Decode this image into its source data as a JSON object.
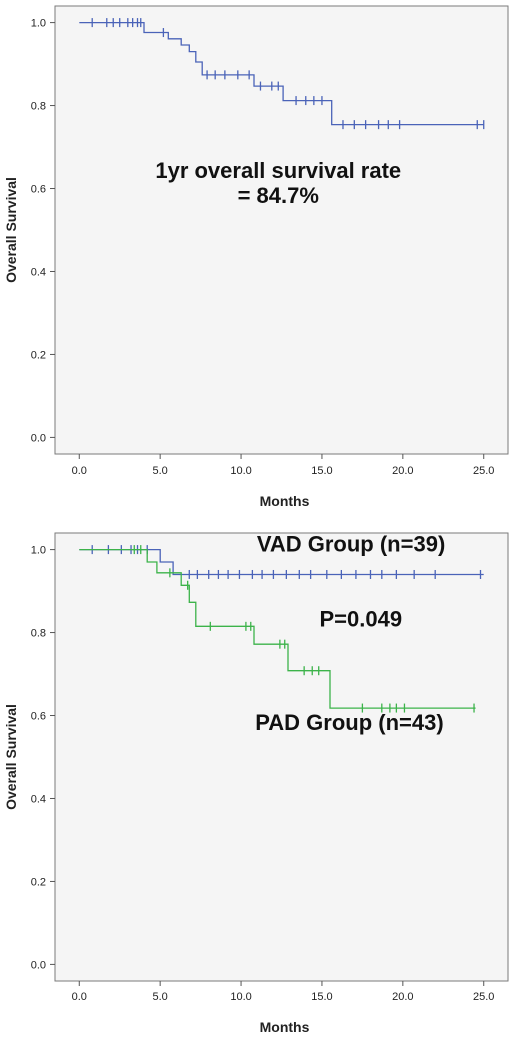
{
  "chart_data": [
    {
      "type": "line",
      "title": "",
      "xlabel": "Months",
      "ylabel": "Overall Survival",
      "xlim": [
        -1.5,
        26.5
      ],
      "ylim": [
        -0.04,
        1.04
      ],
      "xticks": [
        "0.0",
        "5.0",
        "10.0",
        "15.0",
        "20.0",
        "25.0"
      ],
      "yticks": [
        "0.0",
        "0.2",
        "0.4",
        "0.6",
        "0.8",
        "1.0"
      ],
      "grid": false,
      "annotations": [
        {
          "text": "1yr overall survival rate",
          "x": 12.3,
          "y": 0.625
        },
        {
          "text": "= 84.7%",
          "x": 12.3,
          "y": 0.565
        }
      ],
      "series": [
        {
          "name": "",
          "color": "#4a63b8",
          "step": [
            [
              0,
              1.0
            ],
            [
              4.0,
              1.0
            ],
            [
              4.0,
              0.976
            ],
            [
              5.5,
              0.976
            ],
            [
              5.5,
              0.961
            ],
            [
              6.3,
              0.961
            ],
            [
              6.3,
              0.946
            ],
            [
              6.8,
              0.946
            ],
            [
              6.8,
              0.93
            ],
            [
              7.2,
              0.93
            ],
            [
              7.2,
              0.905
            ],
            [
              7.6,
              0.905
            ],
            [
              7.6,
              0.874
            ],
            [
              10.8,
              0.874
            ],
            [
              10.8,
              0.847
            ],
            [
              12.6,
              0.847
            ],
            [
              12.6,
              0.812
            ],
            [
              15.6,
              0.812
            ],
            [
              15.6,
              0.754
            ],
            [
              25,
              0.754
            ]
          ],
          "censored": [
            [
              0.8,
              1.0
            ],
            [
              1.7,
              1.0
            ],
            [
              2.1,
              1.0
            ],
            [
              2.5,
              1.0
            ],
            [
              3.0,
              1.0
            ],
            [
              3.3,
              1.0
            ],
            [
              3.6,
              1.0
            ],
            [
              3.8,
              1.0
            ],
            [
              5.2,
              0.976
            ],
            [
              7.9,
              0.874
            ],
            [
              8.4,
              0.874
            ],
            [
              9.0,
              0.874
            ],
            [
              9.8,
              0.874
            ],
            [
              10.5,
              0.874
            ],
            [
              11.2,
              0.847
            ],
            [
              11.9,
              0.847
            ],
            [
              12.3,
              0.847
            ],
            [
              13.4,
              0.812
            ],
            [
              14.0,
              0.812
            ],
            [
              14.5,
              0.812
            ],
            [
              15.0,
              0.812
            ],
            [
              16.3,
              0.754
            ],
            [
              17.0,
              0.754
            ],
            [
              17.7,
              0.754
            ],
            [
              18.5,
              0.754
            ],
            [
              19.1,
              0.754
            ],
            [
              19.8,
              0.754
            ],
            [
              24.6,
              0.754
            ],
            [
              25.0,
              0.754
            ]
          ]
        }
      ]
    },
    {
      "type": "line",
      "title": "",
      "xlabel": "Months",
      "ylabel": "Overall Survival",
      "xlim": [
        -1.5,
        26.5
      ],
      "ylim": [
        -0.04,
        1.04
      ],
      "xticks": [
        "0.0",
        "5.0",
        "10.0",
        "15.0",
        "20.0",
        "25.0"
      ],
      "yticks": [
        "0.0",
        "0.2",
        "0.4",
        "0.6",
        "0.8",
        "1.0"
      ],
      "grid": false,
      "annotations": [
        {
          "text": "P=0.049",
          "x": 17.4,
          "y": 0.815
        }
      ],
      "series": [
        {
          "name": "VAD Group (n=39)",
          "color": "#4a63b8",
          "label_pos": [
            16.8,
            0.995
          ],
          "step": [
            [
              0,
              1.0
            ],
            [
              5.0,
              1.0
            ],
            [
              5.0,
              0.97
            ],
            [
              5.8,
              0.97
            ],
            [
              5.8,
              0.94
            ],
            [
              25,
              0.94
            ]
          ],
          "censored": [
            [
              0.8,
              1.0
            ],
            [
              1.8,
              1.0
            ],
            [
              2.6,
              1.0
            ],
            [
              3.2,
              1.0
            ],
            [
              3.6,
              1.0
            ],
            [
              4.2,
              1.0
            ],
            [
              6.8,
              0.94
            ],
            [
              7.3,
              0.94
            ],
            [
              8.0,
              0.94
            ],
            [
              8.6,
              0.94
            ],
            [
              9.2,
              0.94
            ],
            [
              9.9,
              0.94
            ],
            [
              10.7,
              0.94
            ],
            [
              11.3,
              0.94
            ],
            [
              12.0,
              0.94
            ],
            [
              12.8,
              0.94
            ],
            [
              13.6,
              0.94
            ],
            [
              14.3,
              0.94
            ],
            [
              15.3,
              0.94
            ],
            [
              16.2,
              0.94
            ],
            [
              17.1,
              0.94
            ],
            [
              18.0,
              0.94
            ],
            [
              18.7,
              0.94
            ],
            [
              19.6,
              0.94
            ],
            [
              20.7,
              0.94
            ],
            [
              22.0,
              0.94
            ],
            [
              24.8,
              0.94
            ]
          ]
        },
        {
          "name": "PAD Group (n=43)",
          "color": "#3cb34a",
          "label_pos": [
            16.7,
            0.565
          ],
          "step": [
            [
              0,
              1.0
            ],
            [
              4.2,
              1.0
            ],
            [
              4.2,
              0.97
            ],
            [
              4.8,
              0.97
            ],
            [
              4.8,
              0.944
            ],
            [
              6.3,
              0.944
            ],
            [
              6.3,
              0.914
            ],
            [
              6.8,
              0.914
            ],
            [
              6.8,
              0.873
            ],
            [
              7.2,
              0.873
            ],
            [
              7.2,
              0.815
            ],
            [
              10.8,
              0.815
            ],
            [
              10.8,
              0.772
            ],
            [
              12.9,
              0.772
            ],
            [
              12.9,
              0.708
            ],
            [
              15.5,
              0.708
            ],
            [
              15.5,
              0.618
            ],
            [
              24.5,
              0.618
            ]
          ],
          "censored": [
            [
              3.4,
              1.0
            ],
            [
              3.8,
              1.0
            ],
            [
              5.6,
              0.944
            ],
            [
              6.7,
              0.914
            ],
            [
              8.1,
              0.815
            ],
            [
              10.3,
              0.815
            ],
            [
              10.6,
              0.815
            ],
            [
              12.4,
              0.772
            ],
            [
              12.7,
              0.772
            ],
            [
              13.9,
              0.708
            ],
            [
              14.4,
              0.708
            ],
            [
              14.8,
              0.708
            ],
            [
              17.5,
              0.618
            ],
            [
              18.7,
              0.618
            ],
            [
              19.2,
              0.618
            ],
            [
              19.6,
              0.618
            ],
            [
              20.1,
              0.618
            ],
            [
              24.4,
              0.618
            ]
          ]
        }
      ]
    }
  ]
}
